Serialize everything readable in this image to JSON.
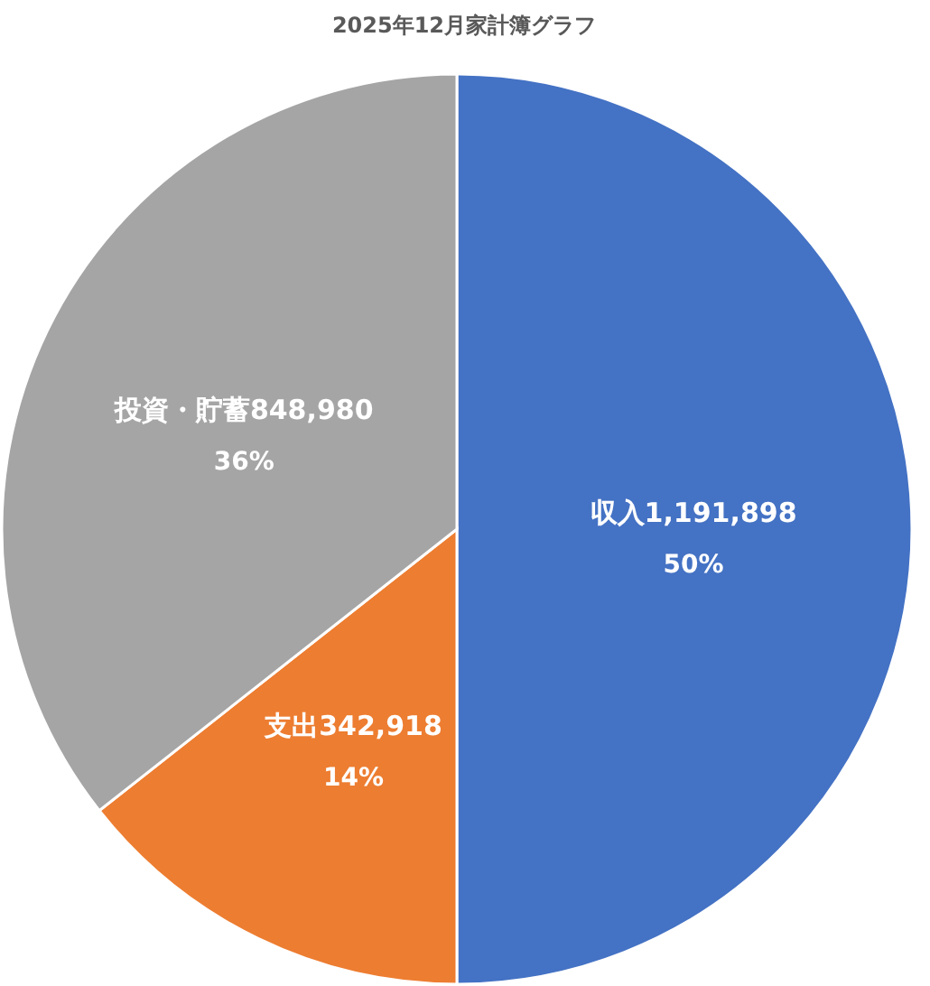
{
  "chart_data": {
    "type": "pie",
    "title": "2025年12月家計簿グラフ",
    "categories": [
      "収入",
      "支出",
      "投資・貯蓄"
    ],
    "values": [
      1191898,
      342918,
      848980
    ],
    "value_labels": [
      "1,191,898",
      "342,918",
      "848,980"
    ],
    "colors": [
      "#4472c4",
      "#ed7d31",
      "#a5a5a5"
    ],
    "annotations": [
      {
        "text": "50%",
        "x": "収入"
      },
      {
        "text": "14%",
        "x": "支出"
      },
      {
        "text": "36%",
        "x": "投資・貯蓄"
      }
    ],
    "legend": false
  }
}
